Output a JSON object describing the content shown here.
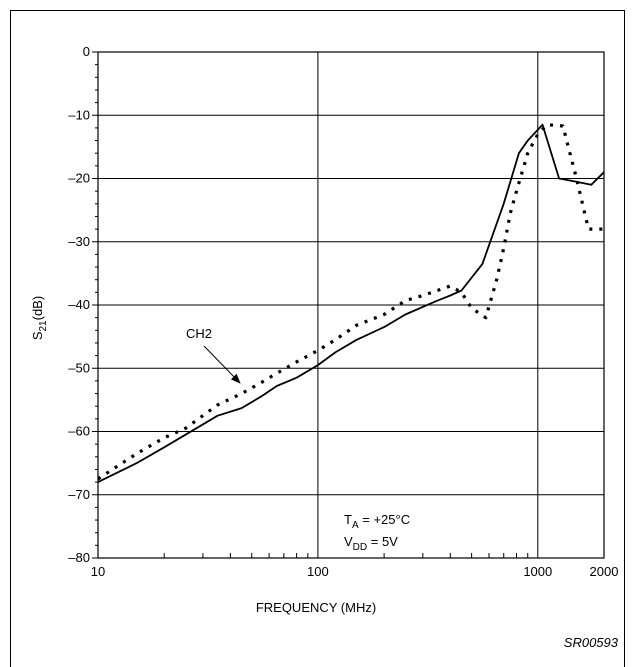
{
  "figure_id": "SR00593",
  "chart_data": {
    "type": "line",
    "xscale": "log",
    "xlim": [
      10,
      2000
    ],
    "ylim": [
      -80,
      0
    ],
    "xlabel": "FREQUENCY (MHz)",
    "ylabel": "S21(dB)",
    "ylabel_main": "S",
    "ylabel_sub": "21",
    "ylabel_unit": "(dB)",
    "grid": true,
    "x_ticks": [
      {
        "value": 10,
        "label": "10"
      },
      {
        "value": 100,
        "label": "100"
      },
      {
        "value": 1000,
        "label": "1000"
      },
      {
        "value": 2000,
        "label": "2000"
      }
    ],
    "y_ticks": [
      0,
      -10,
      -20,
      -30,
      -40,
      -50,
      -60,
      -70,
      -80
    ],
    "y_tick_labels": [
      "0",
      "–10",
      "–20",
      "–30",
      "–40",
      "–50",
      "–60",
      "–70",
      "–80"
    ],
    "series": [
      {
        "style": "solid",
        "color": "#000000",
        "x": [
          10,
          15,
          20,
          25,
          35,
          45,
          55,
          65,
          80,
          100,
          120,
          150,
          200,
          250,
          300,
          350,
          400,
          450,
          560,
          700,
          820,
          900,
          1050,
          1250,
          1500,
          1750,
          2000
        ],
        "y": [
          -68,
          -65,
          -62.5,
          -60.5,
          -57.5,
          -56.3,
          -54.5,
          -52.8,
          -51.5,
          -49.5,
          -47.5,
          -45.5,
          -43.5,
          -41.5,
          -40.3,
          -39.3,
          -38.5,
          -37.7,
          -33.5,
          -24,
          -16,
          -14,
          -11.5,
          -20,
          -20.5,
          -21,
          -19
        ]
      },
      {
        "name": "CH2",
        "style": "dotted",
        "color": "#000000",
        "x": [
          10,
          15,
          20,
          25,
          35,
          45,
          55,
          65,
          80,
          100,
          120,
          150,
          200,
          250,
          300,
          350,
          400,
          450,
          500,
          580,
          650,
          700,
          750,
          800,
          900,
          1000,
          1100,
          1300,
          1500,
          1700,
          2000
        ],
        "y": [
          -67.5,
          -63.5,
          -61,
          -59.5,
          -55.8,
          -54,
          -52.3,
          -50.8,
          -49,
          -47.2,
          -45.5,
          -43.2,
          -41.5,
          -39.3,
          -38.5,
          -37.7,
          -37,
          -38,
          -40.5,
          -42,
          -36,
          -31,
          -25.5,
          -22,
          -16,
          -13,
          -11.5,
          -11.7,
          -20,
          -28,
          -28
        ]
      }
    ],
    "annotations": [
      {
        "id": "ch2",
        "text": "CH2"
      }
    ],
    "conditions": {
      "ta_main": "T",
      "ta_sub": "A",
      "ta_value": " = +25°C",
      "vdd_main": "V",
      "vdd_sub": "DD",
      "vdd_value": " = 5V"
    }
  }
}
